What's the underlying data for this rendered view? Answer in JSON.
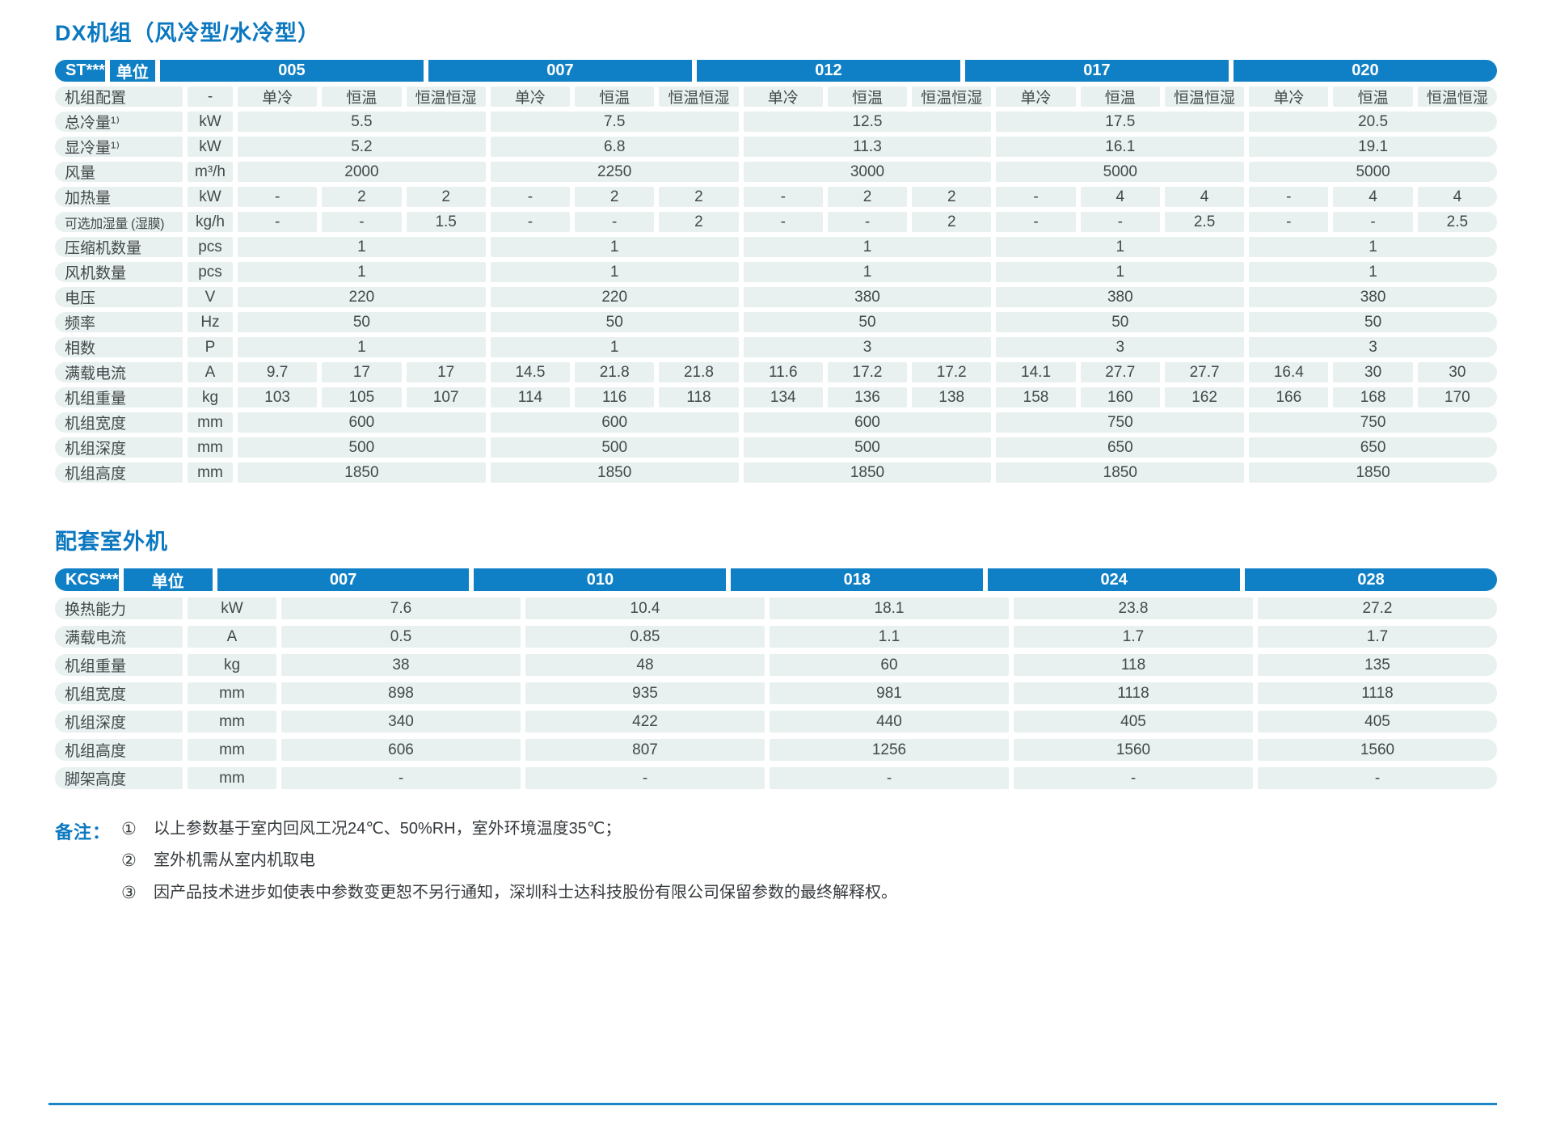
{
  "colors": {
    "accent_blue": "#0f80c5",
    "title_blue": "#0b78c0",
    "cell_bg": "#e8f1ef",
    "text": "#3f4649",
    "rule_blue": "#1c86c6"
  },
  "section1": {
    "title": "DX机组（风冷型/水冷型）",
    "table": {
      "corner": "ST***",
      "unit_header": "单位",
      "models": [
        "005",
        "007",
        "012",
        "017",
        "020"
      ],
      "config_row": {
        "label": "机组配置",
        "unit": "-",
        "options": [
          "单冷",
          "恒温",
          "恒温恒湿"
        ]
      },
      "rows": [
        {
          "label": "总冷量¹⁾",
          "unit": "kW",
          "merged": true,
          "values": [
            "5.5",
            "7.5",
            "12.5",
            "17.5",
            "20.5"
          ]
        },
        {
          "label": "显冷量¹⁾",
          "unit": "kW",
          "merged": true,
          "values": [
            "5.2",
            "6.8",
            "11.3",
            "16.1",
            "19.1"
          ]
        },
        {
          "label": "风量",
          "unit": "m³/h",
          "merged": true,
          "values": [
            "2000",
            "2250",
            "3000",
            "5000",
            "5000"
          ]
        },
        {
          "label": "加热量",
          "unit": "kW",
          "merged": false,
          "values": [
            [
              "-",
              "2",
              "2"
            ],
            [
              "-",
              "2",
              "2"
            ],
            [
              "-",
              "2",
              "2"
            ],
            [
              "-",
              "4",
              "4"
            ],
            [
              "-",
              "4",
              "4"
            ]
          ]
        },
        {
          "label": "可选加湿量 (湿膜)",
          "unit": "kg/h",
          "merged": false,
          "values": [
            [
              "-",
              "-",
              "1.5"
            ],
            [
              "-",
              "-",
              "2"
            ],
            [
              "-",
              "-",
              "2"
            ],
            [
              "-",
              "-",
              "2.5"
            ],
            [
              "-",
              "-",
              "2.5"
            ]
          ]
        },
        {
          "label": "压缩机数量",
          "unit": "pcs",
          "merged": true,
          "values": [
            "1",
            "1",
            "1",
            "1",
            "1"
          ]
        },
        {
          "label": "风机数量",
          "unit": "pcs",
          "merged": true,
          "values": [
            "1",
            "1",
            "1",
            "1",
            "1"
          ]
        },
        {
          "label": "电压",
          "unit": "V",
          "merged": true,
          "values": [
            "220",
            "220",
            "380",
            "380",
            "380"
          ]
        },
        {
          "label": "频率",
          "unit": "Hz",
          "merged": true,
          "values": [
            "50",
            "50",
            "50",
            "50",
            "50"
          ]
        },
        {
          "label": "相数",
          "unit": "P",
          "merged": true,
          "values": [
            "1",
            "1",
            "3",
            "3",
            "3"
          ]
        },
        {
          "label": "满载电流",
          "unit": "A",
          "merged": false,
          "values": [
            [
              "9.7",
              "17",
              "17"
            ],
            [
              "14.5",
              "21.8",
              "21.8"
            ],
            [
              "11.6",
              "17.2",
              "17.2"
            ],
            [
              "14.1",
              "27.7",
              "27.7"
            ],
            [
              "16.4",
              "30",
              "30"
            ]
          ]
        },
        {
          "label": "机组重量",
          "unit": "kg",
          "merged": false,
          "values": [
            [
              "103",
              "105",
              "107"
            ],
            [
              "114",
              "116",
              "118"
            ],
            [
              "134",
              "136",
              "138"
            ],
            [
              "158",
              "160",
              "162"
            ],
            [
              "166",
              "168",
              "170"
            ]
          ]
        },
        {
          "label": "机组宽度",
          "unit": "mm",
          "merged": true,
          "values": [
            "600",
            "600",
            "600",
            "750",
            "750"
          ]
        },
        {
          "label": "机组深度",
          "unit": "mm",
          "merged": true,
          "values": [
            "500",
            "500",
            "500",
            "650",
            "650"
          ]
        },
        {
          "label": "机组高度",
          "unit": "mm",
          "merged": true,
          "values": [
            "1850",
            "1850",
            "1850",
            "1850",
            "1850"
          ]
        }
      ]
    }
  },
  "section2": {
    "title": "配套室外机",
    "table": {
      "corner": "KCS***",
      "unit_header": "单位",
      "models": [
        "007",
        "010",
        "018",
        "024",
        "028"
      ],
      "rows": [
        {
          "label": "换热能力",
          "unit": "kW",
          "values": [
            "7.6",
            "10.4",
            "18.1",
            "23.8",
            "27.2"
          ]
        },
        {
          "label": "满载电流",
          "unit": "A",
          "values": [
            "0.5",
            "0.85",
            "1.1",
            "1.7",
            "1.7"
          ]
        },
        {
          "label": "机组重量",
          "unit": "kg",
          "values": [
            "38",
            "48",
            "60",
            "118",
            "135"
          ]
        },
        {
          "label": "机组宽度",
          "unit": "mm",
          "values": [
            "898",
            "935",
            "981",
            "1118",
            "1118"
          ]
        },
        {
          "label": "机组深度",
          "unit": "mm",
          "values": [
            "340",
            "422",
            "440",
            "405",
            "405"
          ]
        },
        {
          "label": "机组高度",
          "unit": "mm",
          "values": [
            "606",
            "807",
            "1256",
            "1560",
            "1560"
          ]
        },
        {
          "label": "脚架高度",
          "unit": "mm",
          "values": [
            "-",
            "-",
            "-",
            "-",
            "-"
          ]
        }
      ]
    }
  },
  "notes": {
    "label": "备注：",
    "items": [
      {
        "marker": "①",
        "text": "以上参数基于室内回风工况24℃、50%RH，室外环境温度35℃；"
      },
      {
        "marker": "②",
        "text": "室外机需从室内机取电"
      },
      {
        "marker": "③",
        "text": "因产品技术进步如使表中参数变更恕不另行通知，深圳科士达科技股份有限公司保留参数的最终解释权。"
      }
    ]
  }
}
